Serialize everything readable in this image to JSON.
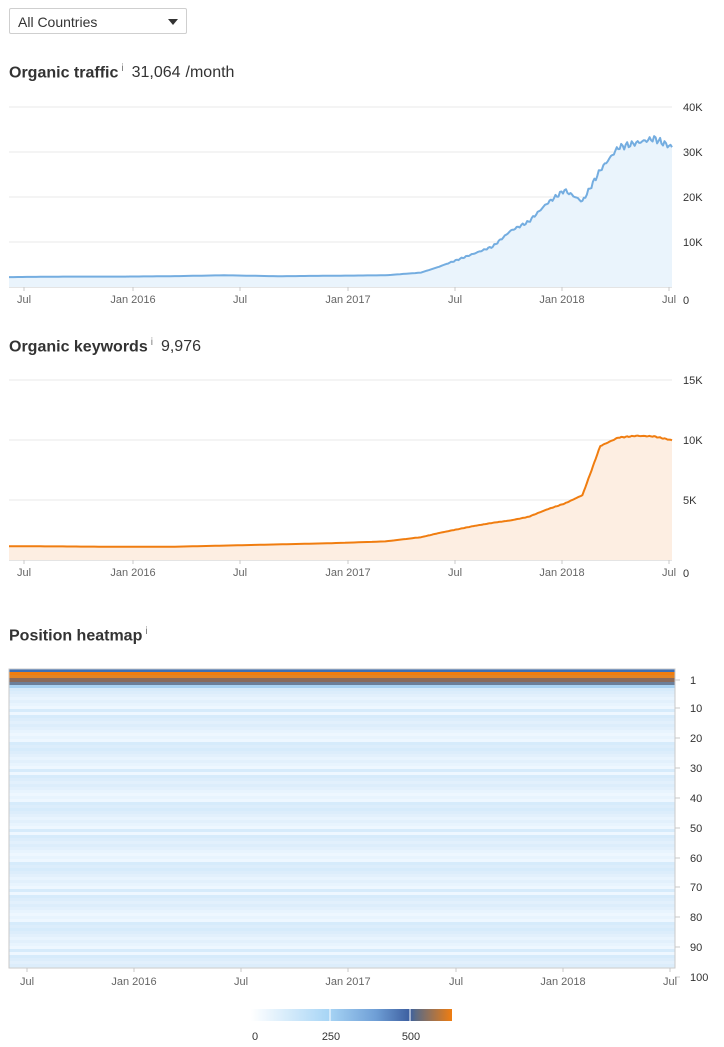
{
  "filter": {
    "country": "All Countries"
  },
  "traffic": {
    "title": "Organic traffic",
    "info": "i",
    "value": "31,064",
    "unit": "/month"
  },
  "keywords": {
    "title": "Organic keywords",
    "info": "i",
    "value": "9,976"
  },
  "heatmap": {
    "title": "Position heatmap",
    "info": "i"
  },
  "x_ticks": [
    "Jul",
    "Jan 2016",
    "Jul",
    "Jan 2017",
    "Jul",
    "Jan 2018",
    "Jul"
  ],
  "colors": {
    "traffic_line": "#74ade0",
    "traffic_fill": "#eaf4fc",
    "keywords_line": "#f07d10",
    "keywords_fill": "#fdeee2",
    "grid": "#e8e8e8"
  },
  "chart_data": [
    {
      "type": "area",
      "title": "Organic traffic",
      "x": [
        "2015-06",
        "2015-09",
        "2015-12",
        "2016-03",
        "2016-06",
        "2016-09",
        "2016-12",
        "2017-03",
        "2017-05",
        "2017-06",
        "2017-07",
        "2017-08",
        "2017-09",
        "2017-10",
        "2017-11",
        "2017-12",
        "2018-01",
        "2018-02",
        "2018-03",
        "2018-04",
        "2018-05",
        "2018-06",
        "2018-07"
      ],
      "y": [
        2200,
        2300,
        2300,
        2400,
        2600,
        2400,
        2500,
        2600,
        3200,
        4500,
        6000,
        7500,
        9000,
        12500,
        14500,
        18500,
        21500,
        19000,
        26000,
        31000,
        32000,
        33000,
        31064
      ],
      "y_ticks": [
        "40K",
        "30K",
        "20K",
        "10K",
        "0"
      ],
      "ylim": [
        0,
        40000
      ]
    },
    {
      "type": "area",
      "title": "Organic keywords",
      "x": [
        "2015-06",
        "2015-09",
        "2015-12",
        "2016-03",
        "2016-06",
        "2016-09",
        "2016-12",
        "2017-03",
        "2017-05",
        "2017-06",
        "2017-07",
        "2017-08",
        "2017-09",
        "2017-10",
        "2017-11",
        "2017-12",
        "2018-01",
        "2018-02",
        "2018-03",
        "2018-04",
        "2018-05",
        "2018-06",
        "2018-07"
      ],
      "y": [
        1150,
        1130,
        1100,
        1100,
        1200,
        1300,
        1400,
        1550,
        1900,
        2250,
        2550,
        2850,
        3100,
        3300,
        3600,
        4200,
        4700,
        5400,
        9500,
        10200,
        10350,
        10300,
        9976
      ],
      "y_ticks": [
        "15K",
        "10K",
        "5K",
        "0"
      ],
      "ylim": [
        0,
        15000
      ]
    },
    {
      "type": "heatmap",
      "title": "Position heatmap",
      "y_ticks": [
        "1",
        "10",
        "20",
        "30",
        "40",
        "50",
        "60",
        "70",
        "80",
        "90",
        "100"
      ],
      "legend_ticks": [
        "0",
        "250",
        "500"
      ]
    }
  ]
}
